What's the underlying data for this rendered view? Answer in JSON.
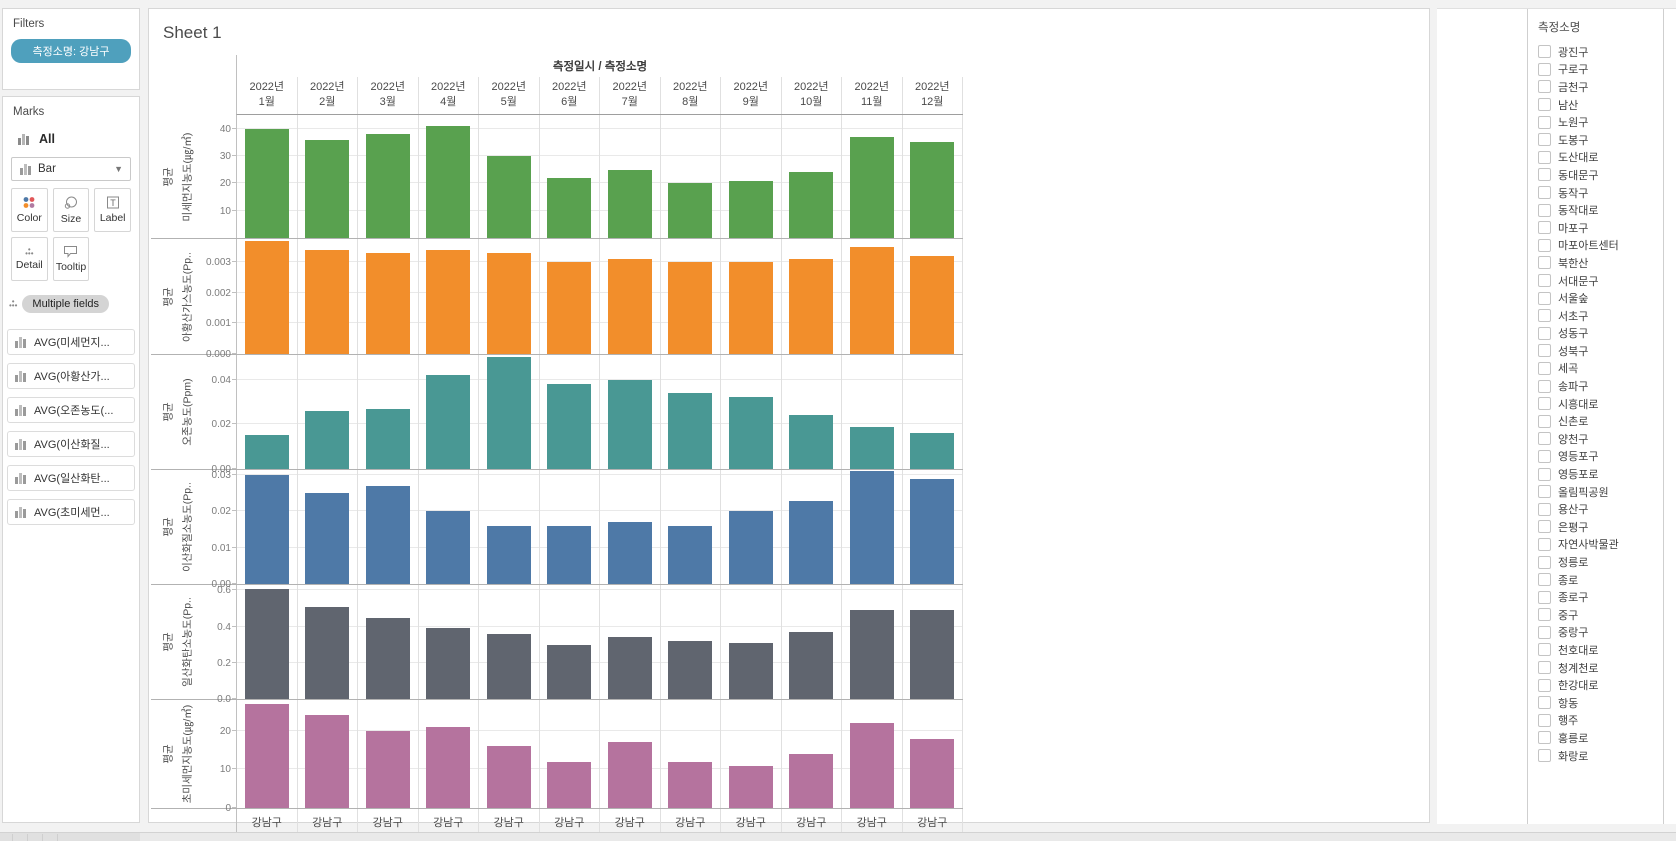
{
  "left_panel": {
    "filters": {
      "title": "Filters",
      "pill": "측정소명: 강남구"
    },
    "marks": {
      "title": "Marks",
      "all_label": "All",
      "mark_type": "Bar",
      "buttons": [
        {
          "label": "Color"
        },
        {
          "label": "Size"
        },
        {
          "label": "Label"
        },
        {
          "label": "Detail"
        },
        {
          "label": "Tooltip"
        }
      ],
      "multiple_fields": "Multiple fields",
      "fields": [
        "AVG(미세먼지...",
        "AVG(아황산가...",
        "AVG(오존농도(...",
        "AVG(이산화질...",
        "AVG(일산화탄...",
        "AVG(초미세먼..."
      ]
    }
  },
  "sheet": {
    "title": "Sheet 1"
  },
  "chart_data": {
    "type": "bar",
    "title": "Sheet 1",
    "column_header": "측정일시 / 측정소명",
    "categories": [
      "2022년 1월",
      "2022년 2월",
      "2022년 3월",
      "2022년 4월",
      "2022년 5월",
      "2022년 6월",
      "2022년 7월",
      "2022년 8월",
      "2022년 9월",
      "2022년 10월",
      "2022년 11월",
      "2022년 12월"
    ],
    "station_label": "강남구",
    "grid": true,
    "legend": "none",
    "series": [
      {
        "name": "평균 미세먼지농도(㎍/㎥)",
        "group_label": "평균",
        "axis_title": "미세먼지농도(㎍/㎥)",
        "color": "#59a14f",
        "axis_max": 45,
        "tick_values": [
          10,
          20,
          30,
          40
        ],
        "tick_labels": [
          "10",
          "20",
          "30",
          "40"
        ],
        "values": [
          40,
          36,
          38,
          41,
          30,
          22,
          25,
          20,
          21,
          24,
          37,
          35
        ]
      },
      {
        "name": "평균 아황산가스농도(Ppm)",
        "group_label": "평균",
        "axis_title": "아황산가스농도(Pp..",
        "color": "#f28e2b",
        "axis_max": 0.00375,
        "tick_values": [
          0,
          0.001,
          0.002,
          0.003
        ],
        "tick_labels": [
          "0.000",
          "0.001",
          "0.002",
          "0.003"
        ],
        "values": [
          0.0037,
          0.0034,
          0.0033,
          0.0034,
          0.0033,
          0.003,
          0.0031,
          0.003,
          0.003,
          0.0031,
          0.0035,
          0.0032
        ]
      },
      {
        "name": "평균 오존농도(Ppm)",
        "group_label": "평균",
        "axis_title": "오존농도(Ppm)",
        "color": "#499894",
        "axis_max": 0.051,
        "tick_values": [
          0,
          0.02,
          0.04
        ],
        "tick_labels": [
          "0.00",
          "0.02",
          "0.04"
        ],
        "values": [
          0.015,
          0.026,
          0.027,
          0.042,
          0.05,
          0.038,
          0.04,
          0.034,
          0.032,
          0.024,
          0.019,
          0.016
        ]
      },
      {
        "name": "평균 이산화질소농도(Ppm)",
        "group_label": "평균",
        "axis_title": "이산화질소농도(Pp..",
        "color": "#4e79a7",
        "axis_max": 0.0314,
        "tick_values": [
          0,
          0.01,
          0.02,
          0.03
        ],
        "tick_labels": [
          "0.00",
          "0.01",
          "0.02",
          "0.03"
        ],
        "values": [
          0.03,
          0.025,
          0.027,
          0.02,
          0.016,
          0.016,
          0.017,
          0.016,
          0.02,
          0.023,
          0.031,
          0.029
        ]
      },
      {
        "name": "평균 일산화탄소농도(Ppm)",
        "group_label": "평균",
        "axis_title": "일산화탄소농도(Pp..",
        "color": "#60656f",
        "axis_max": 0.63,
        "tick_values": [
          0,
          0.2,
          0.4,
          0.6
        ],
        "tick_labels": [
          "0.0",
          "0.2",
          "0.4",
          "0.6"
        ],
        "values": [
          0.61,
          0.51,
          0.45,
          0.39,
          0.36,
          0.3,
          0.34,
          0.32,
          0.31,
          0.37,
          0.49,
          0.49
        ]
      },
      {
        "name": "평균 초미세먼지농도(㎍/㎥)",
        "group_label": "평균",
        "axis_title": "초미세먼지농도(㎍/㎥)",
        "color": "#b5739e",
        "axis_max": 28,
        "tick_values": [
          0,
          10,
          20
        ],
        "tick_labels": [
          "0",
          "10",
          "20"
        ],
        "values": [
          27,
          24,
          20,
          21,
          16,
          12,
          17,
          12,
          11,
          14,
          22,
          18
        ]
      }
    ]
  },
  "right_panel": {
    "title": "측정소명",
    "items": [
      "광진구",
      "구로구",
      "금천구",
      "남산",
      "노원구",
      "도봉구",
      "도산대로",
      "동대문구",
      "동작구",
      "동작대로",
      "마포구",
      "마포아트센터",
      "북한산",
      "서대문구",
      "서울숲",
      "서초구",
      "성동구",
      "성북구",
      "세곡",
      "송파구",
      "시흥대로",
      "신촌로",
      "양천구",
      "영등포구",
      "영등포로",
      "올림픽공원",
      "용산구",
      "은평구",
      "자연사박물관",
      "정릉로",
      "종로",
      "종로구",
      "중구",
      "중랑구",
      "천호대로",
      "청계천로",
      "한강대로",
      "항동",
      "행주",
      "홍릉로",
      "화랑로"
    ]
  }
}
